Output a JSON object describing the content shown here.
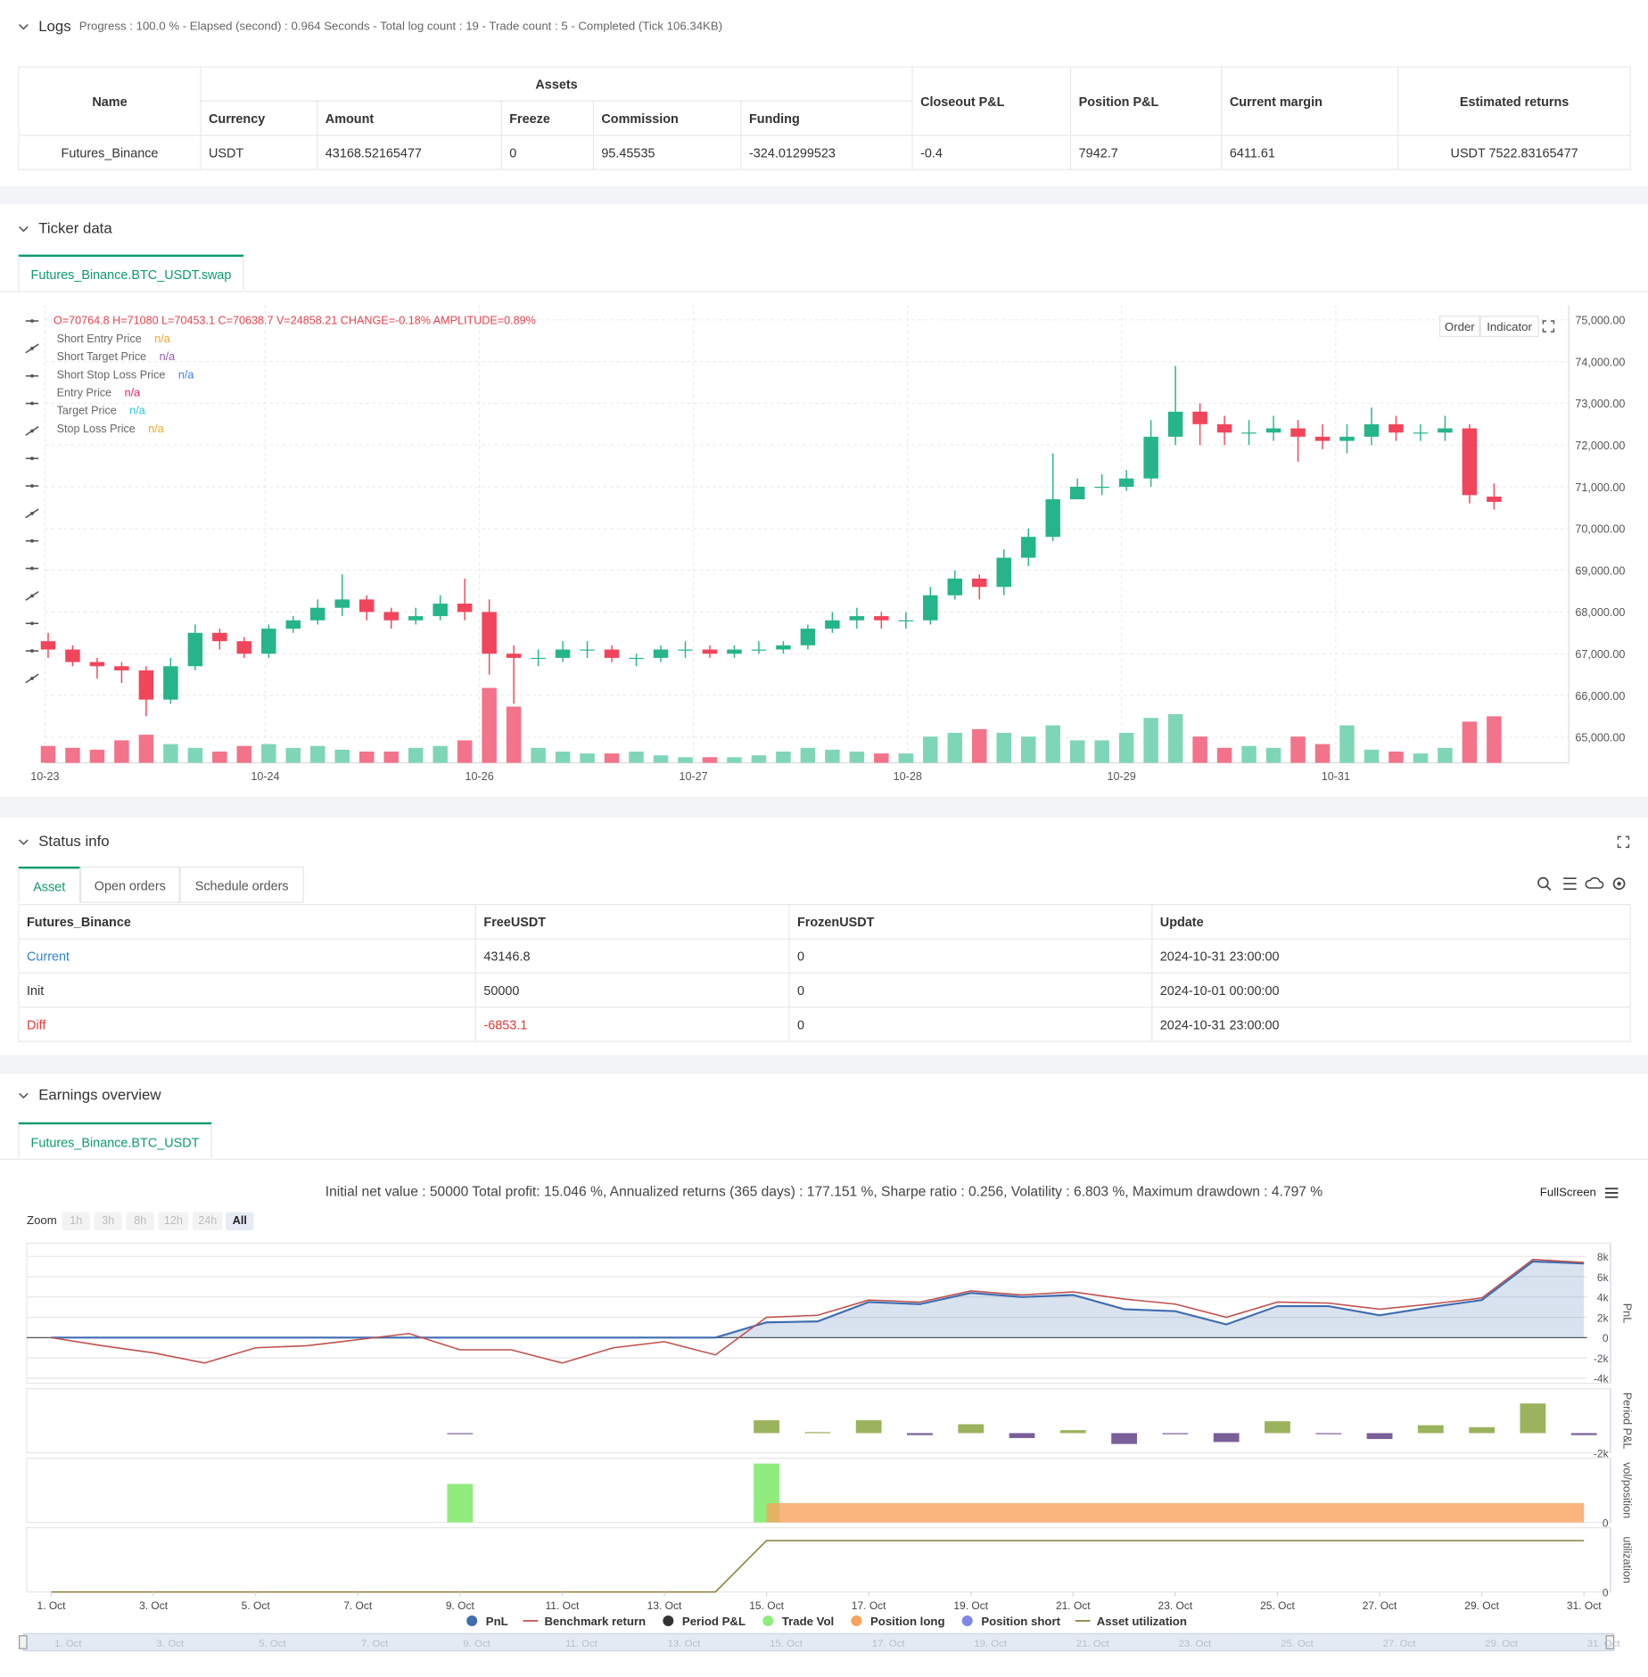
{
  "logs": {
    "title": "Logs",
    "summary": "Progress : 100.0 % - Elapsed (second) : 0.964  Seconds - Total log count : 19 - Trade count : 5 - Completed (Tick 106.34KB)",
    "table": {
      "group_header": "Assets",
      "headers": [
        "Name",
        "Currency",
        "Amount",
        "Freeze",
        "Commission",
        "Funding",
        "Closeout P&L",
        "Position P&L",
        "Current margin",
        "Estimated returns"
      ],
      "rows": [
        [
          "Futures_Binance",
          "USDT",
          "43168.52165477",
          "0",
          "95.45535",
          "-324.01299523",
          "-0.4",
          "7942.7",
          "6411.61",
          "USDT 7522.83165477"
        ]
      ]
    }
  },
  "ticker": {
    "title": "Ticker data",
    "tab": "Futures_Binance.BTC_USDT.swap",
    "buttons": [
      "Order",
      "Indicator"
    ],
    "chart_data": {
      "type": "candlestick",
      "ohlc_label": "O=70764.8 H=71080 L=70453.1 C=70638.7 V=24858.21 CHANGE=-0.18% AMPLITUDE=0.89%",
      "indicators": [
        {
          "name": "Short Entry Price",
          "value": "n/a",
          "color": "#f5a623"
        },
        {
          "name": "Short Target Price",
          "value": "n/a",
          "color": "#9b59b6"
        },
        {
          "name": "Short Stop Loss Price",
          "value": "n/a",
          "color": "#3b82f6"
        },
        {
          "name": "Entry Price",
          "value": "n/a",
          "color": "#e91e63"
        },
        {
          "name": "Target Price",
          "value": "n/a",
          "color": "#26c6da"
        },
        {
          "name": "Stop Loss Price",
          "value": "n/a",
          "color": "#f5a623"
        }
      ],
      "up_color": "#26b58a",
      "down_color": "#f0455b",
      "volume_up_color": "#7fd6b6",
      "volume_down_color": "#f2738a",
      "grid": true,
      "xlim": [
        -0.13,
        62.05
      ],
      "xticks": [
        {
          "value": -0.13,
          "label": "10-23"
        },
        {
          "value": 8.86,
          "label": "10-24"
        },
        {
          "value": 17.6,
          "label": "10-26"
        },
        {
          "value": 26.33,
          "label": "10-27"
        },
        {
          "value": 35.07,
          "label": "10-28"
        },
        {
          "value": 43.8,
          "label": "10-29"
        },
        {
          "value": 52.54,
          "label": "10-31"
        }
      ],
      "ylim": [
        64385,
        75359
      ],
      "yticks": [
        {
          "value": 65000,
          "label": "65,000.00"
        },
        {
          "value": 66000,
          "label": "66,000.00"
        },
        {
          "value": 67000,
          "label": "67,000.00"
        },
        {
          "value": 68000,
          "label": "68,000.00"
        },
        {
          "value": 69000,
          "label": "69,000.00"
        },
        {
          "value": 70000,
          "label": "70,000.00"
        },
        {
          "value": 71000,
          "label": "71,000.00"
        },
        {
          "value": 72000,
          "label": "72,000.00"
        },
        {
          "value": 73000,
          "label": "73,000.00"
        },
        {
          "value": 74000,
          "label": "74,000.00"
        },
        {
          "value": 75000,
          "label": "75,000.00"
        }
      ],
      "open": [
        67300,
        67100,
        66800,
        66700,
        66600,
        65900,
        66700,
        67500,
        67300,
        67000,
        67600,
        67800,
        68100,
        68300,
        68000,
        67800,
        67900,
        68200,
        68000,
        67000,
        66900,
        66900,
        67100,
        67100,
        66900,
        66900,
        67100,
        67100,
        67000,
        67100,
        67100,
        67200,
        67600,
        67800,
        67900,
        67800,
        67800,
        68400,
        68800,
        68600,
        69300,
        69800,
        70700,
        71000,
        71000,
        71200,
        72200,
        72800,
        72500,
        72300,
        72300,
        72400,
        72200,
        72100,
        72200,
        72500,
        72300,
        72300,
        72400,
        70764.8
      ],
      "high": [
        67500,
        67200,
        66900,
        66800,
        66700,
        66900,
        67700,
        67600,
        67400,
        67700,
        67900,
        68300,
        68900,
        68400,
        68100,
        68100,
        68400,
        68800,
        68300,
        67200,
        67100,
        67300,
        67300,
        67200,
        67000,
        67200,
        67300,
        67200,
        67200,
        67300,
        67300,
        67700,
        68000,
        68100,
        68000,
        68000,
        68600,
        69000,
        68900,
        69500,
        70000,
        71800,
        71200,
        71300,
        71400,
        72600,
        73900,
        73000,
        72700,
        72600,
        72700,
        72600,
        72500,
        72500,
        72900,
        72700,
        72500,
        72700,
        72500,
        71080
      ],
      "low": [
        66900,
        66700,
        66400,
        66300,
        65500,
        65800,
        66600,
        67100,
        66900,
        66900,
        67500,
        67700,
        67900,
        67800,
        67600,
        67700,
        67800,
        67800,
        66500,
        65800,
        66700,
        66800,
        66900,
        66800,
        66700,
        66800,
        66900,
        66900,
        66900,
        67000,
        67000,
        67100,
        67500,
        67600,
        67600,
        67600,
        67700,
        68300,
        68300,
        68400,
        69100,
        69700,
        70700,
        70800,
        70900,
        71000,
        72000,
        72000,
        72000,
        72000,
        72100,
        71600,
        71900,
        71800,
        72000,
        72100,
        72100,
        72100,
        70600,
        70453.1
      ],
      "close": [
        67100,
        66800,
        66700,
        66600,
        65900,
        66700,
        67500,
        67300,
        67000,
        67600,
        67800,
        68100,
        68300,
        68000,
        67800,
        67900,
        68200,
        68000,
        67000,
        66900,
        66900,
        67100,
        67100,
        66900,
        66900,
        67100,
        67100,
        67000,
        67100,
        67100,
        67200,
        67600,
        67800,
        67900,
        67800,
        67800,
        68400,
        68800,
        68600,
        69300,
        69800,
        70700,
        71000,
        71000,
        71200,
        72200,
        72800,
        72500,
        72300,
        72300,
        72400,
        72200,
        72100,
        72200,
        72500,
        72300,
        72300,
        72400,
        70800,
        70638.7
      ],
      "volume": [
        9000,
        8000,
        7000,
        12000,
        15000,
        10000,
        8000,
        6000,
        9000,
        10000,
        8000,
        9000,
        7000,
        6000,
        6000,
        8000,
        9000,
        12000,
        40000,
        30000,
        8000,
        6000,
        5000,
        5000,
        6000,
        4000,
        3000,
        3000,
        3000,
        4000,
        6000,
        8000,
        7000,
        6000,
        5000,
        5000,
        14000,
        16000,
        18000,
        16000,
        14000,
        20000,
        12000,
        12000,
        16000,
        24000,
        26000,
        14000,
        8000,
        9000,
        8000,
        14000,
        10000,
        20000,
        7000,
        6000,
        5000,
        8000,
        22000,
        24858.21
      ]
    }
  },
  "status": {
    "title": "Status info",
    "tabs": [
      "Asset",
      "Open orders",
      "Schedule orders"
    ],
    "table": {
      "headers": [
        "Futures_Binance",
        "FreeUSDT",
        "FrozenUSDT",
        "Update"
      ],
      "rows": [
        [
          "Current",
          "43146.8",
          "0",
          "2024-10-31 23:00:00"
        ],
        [
          "Init",
          "50000",
          "0",
          "2024-10-01 00:00:00"
        ],
        [
          "Diff",
          "-6853.1",
          "0",
          "2024-10-31 23:00:00"
        ]
      ]
    }
  },
  "earnings": {
    "title": "Earnings overview",
    "tab": "Futures_Binance.BTC_USDT",
    "summary": "Initial net value : 50000 Total profit: 15.046 %, Annualized returns (365 days) : 177.151 %, Sharpe ratio : 0.256, Volatility : 6.803 %, Maximum drawdown : 4.797 %",
    "fullscreen": "FullScreen",
    "zoom_label": "Zoom",
    "zoom_buttons": [
      "1h",
      "3h",
      "8h",
      "12h",
      "24h",
      "All"
    ],
    "chart_data": {
      "type": "panels",
      "x": [
        1,
        2,
        3,
        4,
        5,
        6,
        7,
        8,
        9,
        10,
        11,
        12,
        13,
        14,
        15,
        16,
        17,
        18,
        19,
        20,
        21,
        22,
        23,
        24,
        25,
        26,
        27,
        28,
        29,
        30,
        31
      ],
      "xlim": [
        0.52,
        31.52
      ],
      "xticks": [
        {
          "value": 1,
          "label": "1. Oct"
        },
        {
          "value": 3,
          "label": "3. Oct"
        },
        {
          "value": 5,
          "label": "5. Oct"
        },
        {
          "value": 7,
          "label": "7. Oct"
        },
        {
          "value": 9,
          "label": "9. Oct"
        },
        {
          "value": 11,
          "label": "11. Oct"
        },
        {
          "value": 13,
          "label": "13. Oct"
        },
        {
          "value": 15,
          "label": "15. Oct"
        },
        {
          "value": 17,
          "label": "17. Oct"
        },
        {
          "value": 19,
          "label": "19. Oct"
        },
        {
          "value": 21,
          "label": "21. Oct"
        },
        {
          "value": 23,
          "label": "23. Oct"
        },
        {
          "value": 25,
          "label": "25. Oct"
        },
        {
          "value": 27,
          "label": "27. Oct"
        },
        {
          "value": 29,
          "label": "29. Oct"
        },
        {
          "value": 31,
          "label": "31. Oct"
        }
      ],
      "panels": [
        {
          "ylabel": "PnL",
          "grid": true,
          "ylim": [
            -4500,
            9300
          ],
          "yticks": [
            {
              "value": 8000,
              "label": "8k"
            },
            {
              "value": 6000,
              "label": "6k"
            },
            {
              "value": 4000,
              "label": "4k"
            },
            {
              "value": 2000,
              "label": "2k"
            },
            0,
            {
              "value": -2000,
              "label": "-2k"
            },
            {
              "value": -4000,
              "label": "-4k"
            }
          ],
          "series": [
            {
              "name": "PnL",
              "type": "area",
              "color": "#3f6db0",
              "values": [
                0,
                0,
                0,
                0,
                0,
                0,
                0,
                0,
                0,
                0,
                0,
                0,
                0,
                0,
                1500,
                1600,
                3500,
                3300,
                4400,
                4000,
                4200,
                2800,
                2600,
                1300,
                3100,
                3100,
                2200,
                3000,
                3700,
                7500,
                7300
              ]
            },
            {
              "name": "Benchmark return",
              "type": "line",
              "color": "#c0504d",
              "values": [
                0,
                -800,
                -1500,
                -2500,
                -1000,
                -800,
                -200,
                400,
                -1200,
                -1200,
                -2500,
                -1000,
                -400,
                -1700,
                2000,
                2200,
                3700,
                3500,
                4600,
                4200,
                4500,
                3800,
                3300,
                2000,
                3500,
                3400,
                2800,
                3300,
                3900,
                7700,
                7400
              ]
            }
          ]
        },
        {
          "ylabel": "Period P&L",
          "grid": false,
          "ylim": [
            -2000,
            4500
          ],
          "yticks": [
            {
              "value": -2000,
              "label": "-2k"
            }
          ],
          "series": [
            {
              "name": "Period P&L",
              "type": "bar",
              "color": "#333333",
              "positive_color": "#9bb35c",
              "negative_color": "#7a5f99",
              "values": [
                null,
                null,
                null,
                null,
                null,
                null,
                null,
                null,
                -100,
                null,
                null,
                null,
                null,
                null,
                1300,
                100,
                1300,
                -200,
                900,
                -500,
                300,
                -1100,
                -100,
                -900,
                1200,
                -100,
                -600,
                800,
                600,
                3000,
                -200
              ]
            }
          ]
        },
        {
          "ylabel": "vol/position",
          "grid": false,
          "ylim": [
            0,
            60000
          ],
          "yticks": [
            0
          ],
          "series": [
            {
              "name": "Trade Vol",
              "type": "bar",
              "color": "#90ed7d",
              "values": [
                null,
                null,
                null,
                null,
                null,
                null,
                null,
                null,
                36000,
                null,
                null,
                null,
                null,
                null,
                55000,
                null,
                null,
                null,
                null,
                null,
                null,
                null,
                null,
                null,
                null,
                null,
                null,
                null,
                null,
                null,
                null
              ]
            },
            {
              "name": "Position long",
              "type": "area",
              "color": "#f7a35c",
              "values": [
                null,
                null,
                null,
                null,
                null,
                null,
                null,
                null,
                null,
                null,
                null,
                null,
                null,
                null,
                18000,
                18000,
                18000,
                18000,
                18000,
                18000,
                18000,
                18000,
                18000,
                18000,
                18000,
                18000,
                18000,
                18000,
                18000,
                18000,
                18000
              ]
            },
            {
              "name": "Position short",
              "type": "area",
              "color": "#8085e9",
              "values": [
                null,
                null,
                null,
                null,
                null,
                null,
                null,
                null,
                null,
                null,
                null,
                null,
                null,
                null,
                null,
                null,
                null,
                null,
                null,
                null,
                null,
                null,
                null,
                null,
                null,
                null,
                null,
                null,
                null,
                null,
                null
              ]
            }
          ]
        },
        {
          "ylabel": "utilization",
          "grid": false,
          "ylim": [
            0,
            1
          ],
          "yticks": [
            0
          ],
          "series": [
            {
              "name": "Asset utilization",
              "type": "line",
              "color": "#8a7d3c",
              "values": [
                0,
                0,
                0,
                0,
                0,
                0,
                0,
                0,
                0,
                0,
                0,
                0,
                0,
                0,
                0.8,
                0.8,
                0.8,
                0.8,
                0.8,
                0.8,
                0.8,
                0.8,
                0.8,
                0.8,
                0.8,
                0.8,
                0.8,
                0.8,
                0.8,
                0.8,
                0.8
              ]
            }
          ]
        }
      ]
    }
  }
}
